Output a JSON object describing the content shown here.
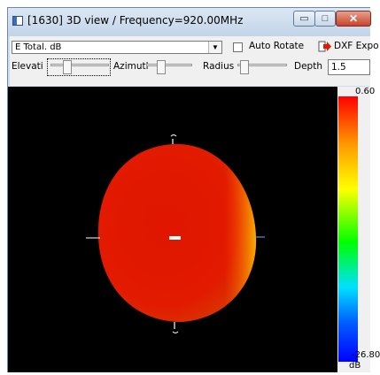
{
  "window": {
    "title": "[1630] 3D view / Frequency=920.00MHz",
    "minimize_glyph": "▭",
    "maximize_glyph": "□",
    "close_glyph": "✕"
  },
  "toolbar": {
    "quantity_value": "E Total. dB",
    "dropdown_arrow": "▼",
    "auto_rotate_label": "Auto Rotate",
    "auto_rotate_checked": false,
    "dxf_label": "DXF Expo",
    "elevation_label": "Elevati",
    "azimuth_label": "Azimutl",
    "radius_label": "Radius",
    "depth_label": "Depth",
    "depth_value": "1.5"
  },
  "viewport": {
    "background": "#000000",
    "pattern_color": "#e01600"
  },
  "colorbar": {
    "max_label": "0.60",
    "min_label": "-26.80",
    "unit_label": "dB"
  },
  "icons": {
    "app": "app-icon",
    "dxf": "red-arrow-icon"
  }
}
